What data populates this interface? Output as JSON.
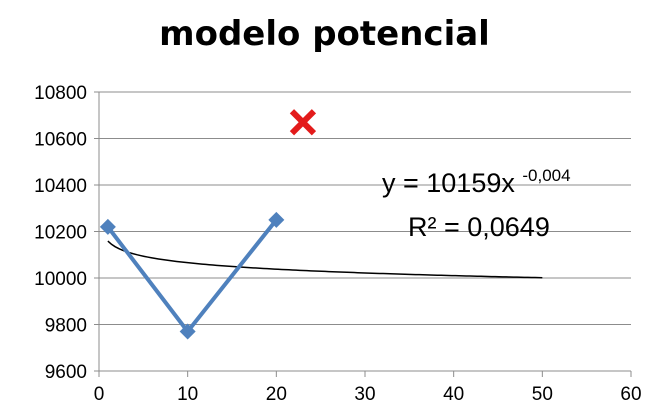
{
  "chart_data": {
    "type": "scatter",
    "title": "modelo potencial",
    "xlabel": "",
    "ylabel": "",
    "xlim": [
      0,
      60
    ],
    "ylim": [
      9600,
      10800
    ],
    "x_ticks": [
      "0",
      "10",
      "20",
      "30",
      "40",
      "50",
      "60"
    ],
    "y_ticks": [
      "9600",
      "9800",
      "10000",
      "10200",
      "10400",
      "10600",
      "10800"
    ],
    "grid": "horizontal",
    "legend": "none",
    "series": [
      {
        "style": "line-with-diamond-markers",
        "color": "#4f81bd",
        "points": [
          {
            "x": 1,
            "y": 10220
          },
          {
            "x": 10,
            "y": 9770
          },
          {
            "x": 20,
            "y": 10250
          }
        ]
      },
      {
        "style": "x-marker",
        "color": "#e31b1b",
        "points": [
          {
            "x": 23,
            "y": 10670
          }
        ]
      }
    ],
    "trendline": {
      "type": "power",
      "a": 10159,
      "b": -0.004,
      "x_range": [
        1,
        50
      ],
      "color": "#000000",
      "equation_prefix": "y = 10159x",
      "equation_exponent": "-0,004",
      "r_squared_label": "R² = 0,0649"
    }
  }
}
